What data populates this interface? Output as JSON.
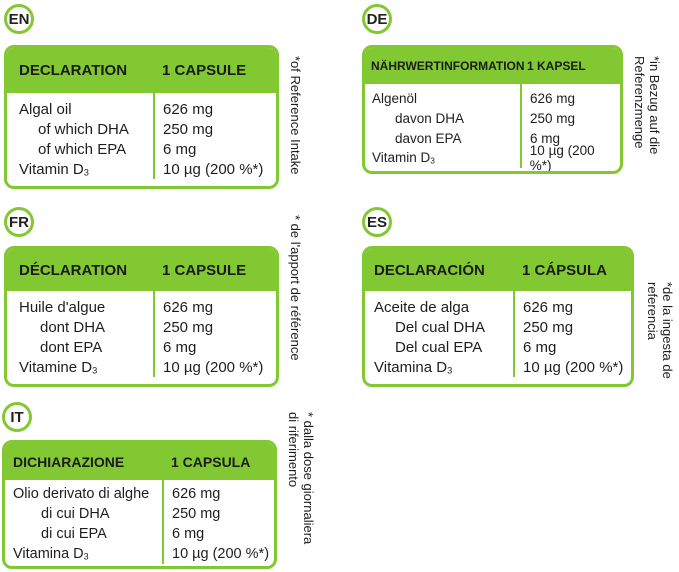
{
  "accent_color": "#82c832",
  "panels": {
    "en": {
      "lang": "EN",
      "header_left": "DECLARATION",
      "header_right": "1 CAPSULE",
      "rows": [
        {
          "label": "Algal oil",
          "value": "626 mg"
        },
        {
          "label": "of which DHA",
          "value": "250 mg"
        },
        {
          "label": "of which EPA",
          "value": "6 mg"
        },
        {
          "label": "Vitamin D",
          "sub": "3",
          "value": "10 µg (200 %*)"
        }
      ],
      "footnote": [
        "*of Reference Intake"
      ]
    },
    "de": {
      "lang": "DE",
      "header_left": "NÄHRWERTINFORMATION",
      "header_right": "1 KAPSEL",
      "rows": [
        {
          "label": "Algenöl",
          "value": "626 mg"
        },
        {
          "label": "davon DHA",
          "value": "250 mg"
        },
        {
          "label": "davon EPA",
          "value": "6 mg"
        },
        {
          "label": "Vitamin D",
          "sub": "3",
          "value": "10 µg (200 %*)"
        }
      ],
      "footnote": [
        "*in Bezug auf die",
        "Referenzmenge"
      ]
    },
    "fr": {
      "lang": "FR",
      "header_left": "DÉCLARATION",
      "header_right": "1 CAPSULE",
      "rows": [
        {
          "label": "Huile d'algue",
          "value": "626 mg"
        },
        {
          "label": "dont DHA",
          "value": "250 mg"
        },
        {
          "label": "dont EPA",
          "value": "6 mg"
        },
        {
          "label": "Vitamine D",
          "sub": "3",
          "value": "10 µg (200 %*)"
        }
      ],
      "footnote": [
        "* de l'apport de référence"
      ]
    },
    "es": {
      "lang": "ES",
      "header_left": "DECLARACIÓN",
      "header_right": "1 CÁPSULA",
      "rows": [
        {
          "label": "Aceite de alga",
          "value": "626 mg"
        },
        {
          "label": "Del cual DHA",
          "value": "250 mg"
        },
        {
          "label": "Del cual EPA",
          "value": "6 mg"
        },
        {
          "label": "Vitamina D",
          "sub": "3",
          "value": "10 µg (200 %*)"
        }
      ],
      "footnote": [
        "*de la ingesta de",
        "referencia"
      ]
    },
    "it": {
      "lang": "IT",
      "header_left": "DICHIARAZIONE",
      "header_right": "1 CAPSULA",
      "rows": [
        {
          "label": "Olio derivato di alghe",
          "value": "626 mg"
        },
        {
          "label": "di cui DHA",
          "value": "250 mg"
        },
        {
          "label": "di cui EPA",
          "value": "6 mg"
        },
        {
          "label": "Vitamina D",
          "sub": "3",
          "value": "10 µg (200 %*)"
        }
      ],
      "footnote": [
        "* dalla dose giornaliera",
        "di riferimento"
      ]
    }
  }
}
